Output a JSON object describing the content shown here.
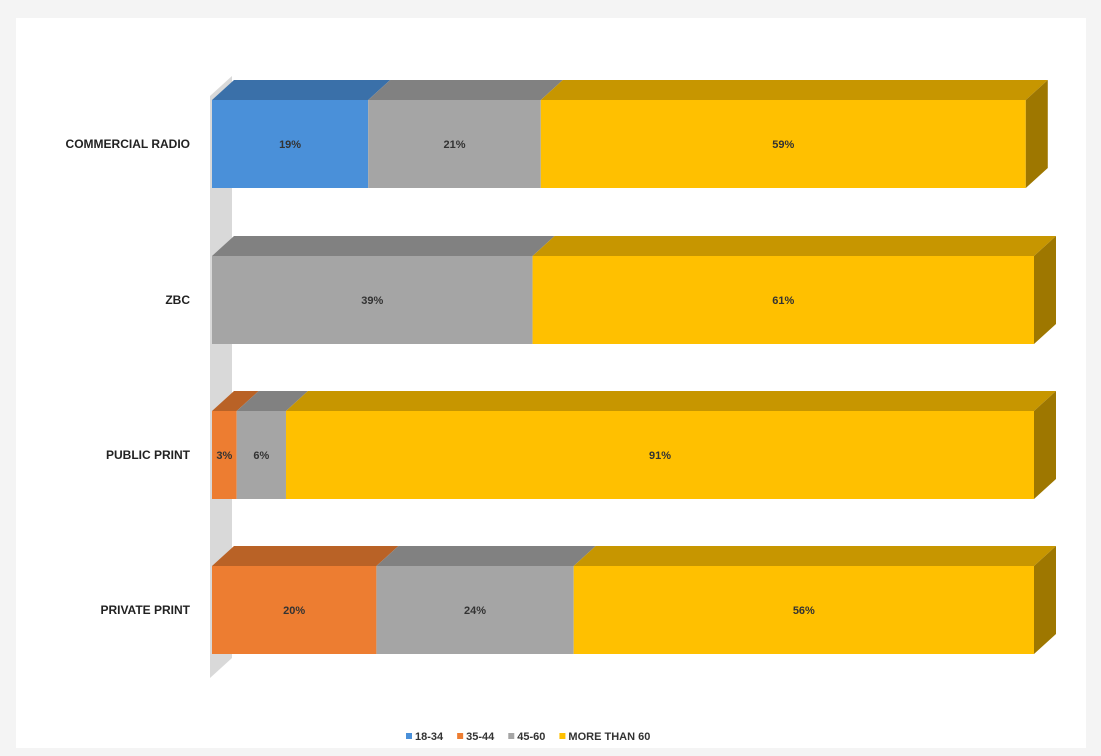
{
  "chart_data": {
    "type": "bar",
    "orientation": "horizontal",
    "stacked": true,
    "percent_stacked": true,
    "three_d": true,
    "categories": [
      "COMMERCIAL RADIO",
      "ZBC",
      "PUBLIC PRINT",
      "PRIVATE PRINT"
    ],
    "series": [
      {
        "name": "18-34",
        "color": "#4a90d9",
        "values": [
          19,
          0,
          0,
          0
        ],
        "labels": [
          "19%",
          "",
          "",
          ""
        ]
      },
      {
        "name": "35-44",
        "color": "#ed7d31",
        "values": [
          0,
          0,
          3,
          20
        ],
        "labels": [
          "",
          "",
          "3%",
          "20%"
        ]
      },
      {
        "name": "45-60",
        "color": "#a5a5a5",
        "values": [
          21,
          39,
          6,
          24
        ],
        "labels": [
          "21%",
          "39%",
          "6%",
          "24%"
        ]
      },
      {
        "name": "MORE THAN 60",
        "color": "#ffc000",
        "values": [
          59,
          61,
          91,
          56
        ],
        "labels": [
          "59%",
          "61%",
          "91%",
          "56%"
        ]
      }
    ],
    "xlim": [
      0,
      100
    ],
    "grid": false,
    "legend": "bottom",
    "title": "",
    "xlabel": "",
    "ylabel": ""
  }
}
